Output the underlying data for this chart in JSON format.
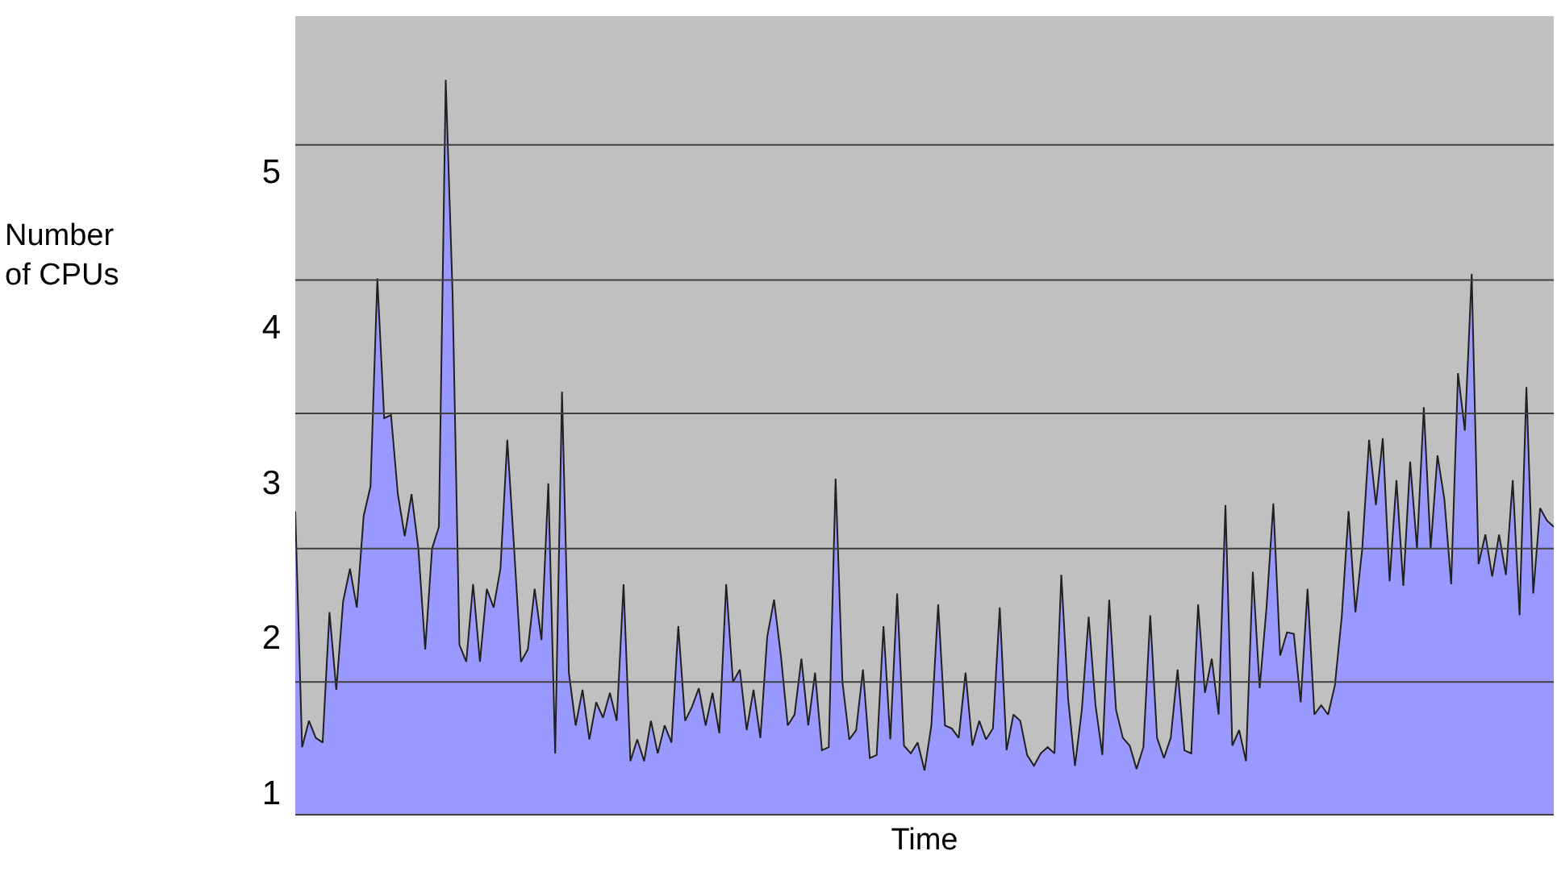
{
  "chart_data": {
    "type": "area",
    "xlabel": "Time",
    "ylabel": "Number of CPUs",
    "categories": [
      null,
      null,
      null,
      null,
      null,
      null,
      null,
      null,
      null,
      null,
      null,
      null,
      null,
      null,
      null,
      null,
      null,
      null,
      null,
      null,
      null,
      null,
      null,
      null,
      null,
      null,
      null,
      null,
      null,
      null,
      null,
      null,
      null,
      null,
      null,
      null,
      null,
      null,
      null,
      null,
      null,
      null,
      null,
      null,
      null,
      null,
      null,
      null,
      null,
      null,
      null,
      null,
      null,
      null,
      null,
      null,
      null,
      null,
      null,
      null,
      null,
      null,
      null,
      null,
      null,
      null,
      null,
      null,
      null,
      null,
      null,
      null,
      null,
      null,
      null,
      null,
      null,
      null,
      null,
      null,
      null,
      null,
      null,
      null,
      null,
      null,
      null,
      null,
      null,
      null,
      null,
      null,
      null,
      null,
      null,
      null,
      null,
      null,
      null,
      null,
      null,
      null,
      null,
      null,
      null,
      null,
      null,
      null,
      null,
      null,
      null,
      null,
      null,
      null,
      null,
      null,
      null,
      null,
      null,
      null,
      null,
      null,
      null,
      null,
      null,
      null,
      null,
      null,
      null,
      null,
      null,
      null,
      null,
      null,
      null,
      null,
      null,
      null,
      null,
      null,
      null,
      null,
      null,
      null,
      null,
      null,
      null,
      null,
      null,
      null,
      null,
      null,
      null,
      null,
      null,
      null,
      null,
      null,
      null,
      null,
      null,
      null,
      null,
      null,
      null,
      null,
      null,
      null,
      null,
      null,
      null,
      null,
      null,
      null,
      null,
      null,
      null,
      null,
      null,
      null,
      null,
      null,
      null,
      null,
      null
    ],
    "series": [
      {
        "color": "#9999ff",
        "values": [
          2.81,
          1.29,
          1.46,
          1.35,
          1.32,
          2.16,
          1.66,
          2.23,
          2.44,
          2.19,
          2.78,
          2.97,
          4.31,
          3.41,
          3.43,
          2.92,
          2.65,
          2.92,
          2.57,
          1.92,
          2.57,
          2.71,
          5.59,
          4.21,
          1.95,
          1.84,
          2.34,
          1.84,
          2.31,
          2.19,
          2.44,
          3.27,
          2.57,
          1.84,
          1.92,
          2.31,
          1.98,
          2.99,
          1.25,
          3.58,
          1.77,
          1.43,
          1.66,
          1.34,
          1.58,
          1.48,
          1.64,
          1.46,
          2.34,
          1.2,
          1.34,
          1.2,
          1.46,
          1.25,
          1.43,
          1.32,
          2.07,
          1.46,
          1.55,
          1.67,
          1.43,
          1.64,
          1.38,
          2.34,
          1.71,
          1.79,
          1.4,
          1.66,
          1.35,
          2.0,
          2.24,
          1.88,
          1.43,
          1.5,
          1.86,
          1.43,
          1.77,
          1.27,
          1.29,
          3.02,
          1.71,
          1.34,
          1.4,
          1.79,
          1.22,
          1.24,
          2.07,
          1.34,
          2.28,
          1.3,
          1.25,
          1.32,
          1.14,
          1.43,
          2.21,
          1.43,
          1.41,
          1.35,
          1.77,
          1.3,
          1.46,
          1.34,
          1.41,
          2.19,
          1.27,
          1.5,
          1.46,
          1.24,
          1.17,
          1.25,
          1.29,
          1.25,
          2.4,
          1.6,
          1.17,
          1.53,
          2.13,
          1.56,
          1.24,
          2.24,
          1.53,
          1.35,
          1.3,
          1.15,
          1.29,
          2.14,
          1.35,
          1.22,
          1.35,
          1.79,
          1.27,
          1.25,
          2.21,
          1.64,
          1.86,
          1.5,
          2.85,
          1.3,
          1.4,
          1.2,
          2.42,
          1.67,
          2.19,
          2.86,
          1.88,
          2.03,
          2.02,
          1.58,
          2.31,
          1.5,
          1.56,
          1.5,
          1.69,
          2.13,
          2.81,
          2.16,
          2.57,
          3.27,
          2.85,
          3.28,
          2.36,
          3.01,
          2.33,
          3.13,
          2.57,
          3.48,
          2.57,
          3.17,
          2.89,
          2.34,
          3.7,
          3.33,
          4.34,
          2.47,
          2.66,
          2.39,
          2.66,
          2.4,
          3.01,
          2.14,
          3.61,
          2.28,
          2.83,
          2.75,
          2.71
        ]
      }
    ],
    "ylim": [
      0.86,
      6.0
    ],
    "yticks": [
      1,
      2,
      3,
      4,
      5
    ],
    "grid": false,
    "tick_labels": "y",
    "ref_lines": [
      {
        "axis": "y",
        "value": 1.71,
        "color": "#404040"
      },
      {
        "axis": "y",
        "value": 2.57,
        "color": "#404040"
      },
      {
        "axis": "y",
        "value": 3.44,
        "color": "#404040"
      },
      {
        "axis": "y",
        "value": 4.3,
        "color": "#404040"
      },
      {
        "axis": "y",
        "value": 5.17,
        "color": "#404040"
      }
    ]
  }
}
